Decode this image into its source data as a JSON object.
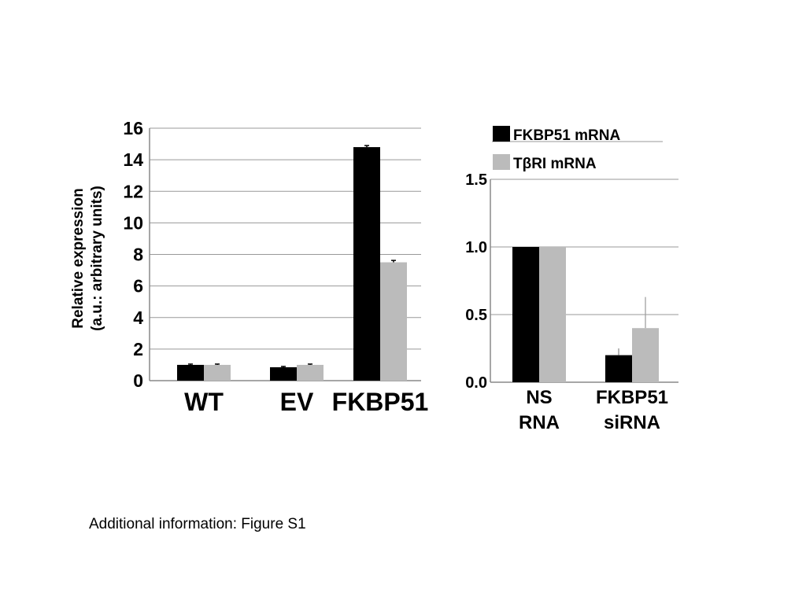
{
  "caption": "Additional information: Figure S1",
  "colors": {
    "black_series": "#000000",
    "gray_series": "#bbbbbb",
    "grid": "#999999"
  },
  "chart_data": [
    {
      "type": "bar",
      "title": "",
      "ylabel_lines": [
        "Relative expression",
        "(a.u.: arbitrary units)"
      ],
      "xlabel": "",
      "categories": [
        "WT",
        "EV",
        "FKBP51"
      ],
      "ylim": [
        0,
        16
      ],
      "yticks": [
        0,
        2,
        4,
        6,
        8,
        10,
        12,
        14,
        16
      ],
      "grid": true,
      "series": [
        {
          "name": "FKBP51 mRNA",
          "color": "#000000",
          "values": [
            1.0,
            0.85,
            14.8
          ],
          "errors": [
            0.05,
            0.05,
            0.1
          ]
        },
        {
          "name": "TβRI mRNA",
          "color": "#bbbbbb",
          "values": [
            1.0,
            1.0,
            7.5
          ],
          "errors": [
            0.05,
            0.05,
            0.12
          ]
        }
      ]
    },
    {
      "type": "bar",
      "title": "",
      "ylabel": "",
      "xlabel": "",
      "categories": [
        [
          "NS",
          "RNA"
        ],
        [
          "FKBP51",
          "siRNA"
        ]
      ],
      "ylim": [
        0,
        1.5
      ],
      "yticks": [
        "0.0",
        "0.5",
        "1.0",
        "1.5"
      ],
      "grid": true,
      "legend": {
        "position": "top",
        "entries": [
          "FKBP51 mRNA",
          "TβRI mRNA"
        ]
      },
      "series": [
        {
          "name": "FKBP51 mRNA",
          "color": "#000000",
          "values": [
            1.0,
            0.2
          ],
          "errors": [
            0,
            0.05
          ]
        },
        {
          "name": "TβRI mRNA",
          "color": "#bbbbbb",
          "values": [
            1.0,
            0.4
          ],
          "errors": [
            0,
            0.23
          ]
        }
      ]
    }
  ]
}
